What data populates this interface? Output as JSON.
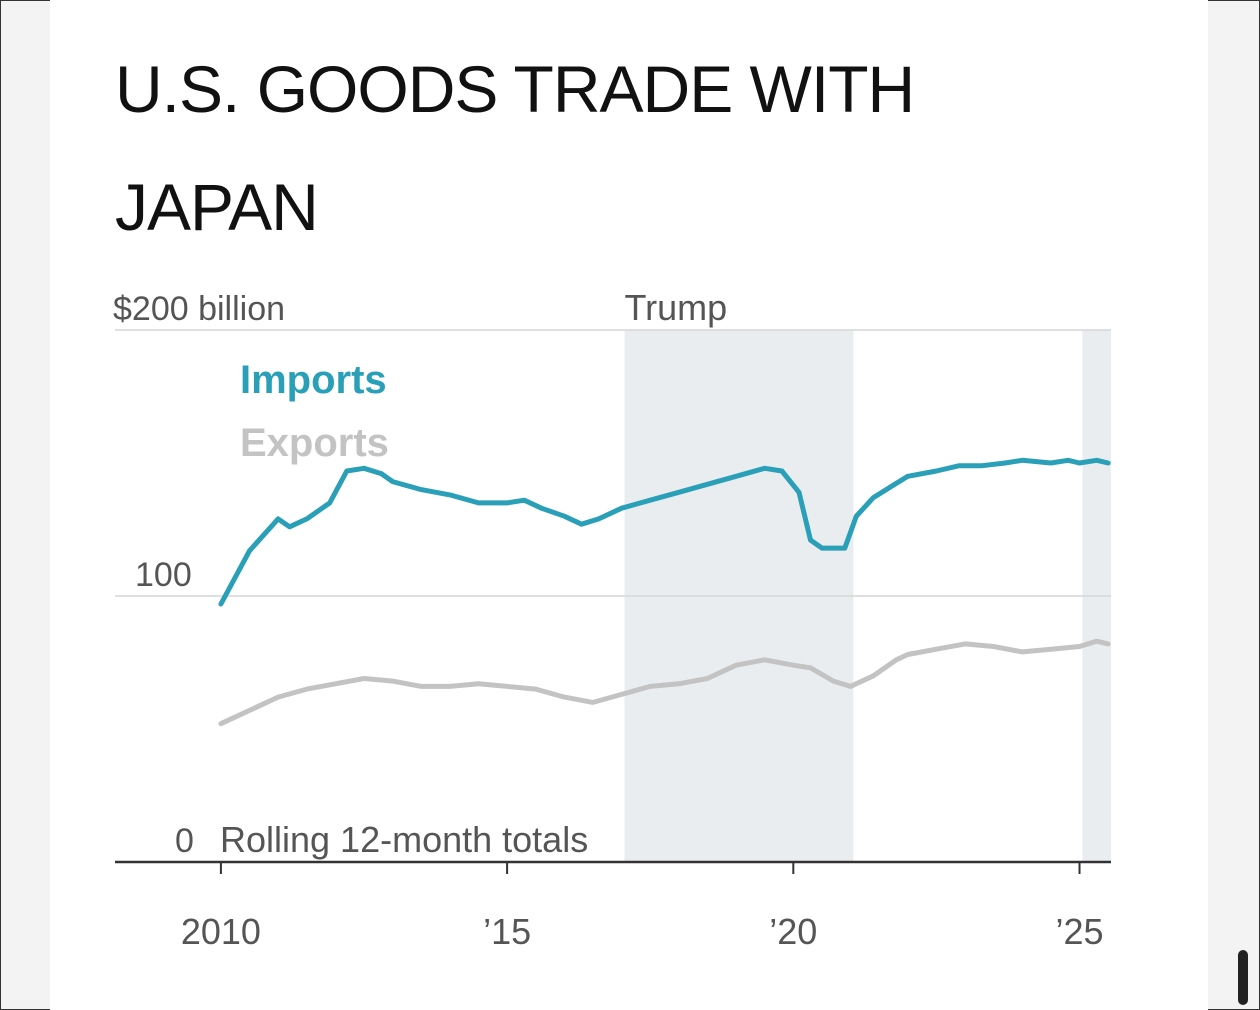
{
  "chart_data": {
    "type": "line",
    "title": "U.S. GOODS TRADE WITH JAPAN",
    "ylabel": "Rolling 12-month totals",
    "ylim": [
      0,
      200
    ],
    "yticks": [
      {
        "value": 200,
        "label": "$200 billion"
      },
      {
        "value": 100,
        "label": "100"
      },
      {
        "value": 0,
        "label": "0"
      }
    ],
    "xlim": [
      2008.15,
      2025.55
    ],
    "xticks": [
      {
        "value": 2010,
        "label": "2010"
      },
      {
        "value": 2015,
        "label": "’15"
      },
      {
        "value": 2020,
        "label": "’20"
      },
      {
        "value": 2025,
        "label": "’25"
      }
    ],
    "shaded_periods": [
      {
        "start": 2017.05,
        "end": 2021.05,
        "label": "Trump"
      },
      {
        "start": 2025.05,
        "end": 2025.55,
        "label": ""
      }
    ],
    "series": [
      {
        "name": "Imports",
        "color": "#2a9fb8",
        "x": [
          2010.0,
          2010.5,
          2011.0,
          2011.2,
          2011.5,
          2011.9,
          2012.2,
          2012.5,
          2012.8,
          2013.0,
          2013.5,
          2014.0,
          2014.5,
          2015.0,
          2015.3,
          2015.6,
          2016.0,
          2016.3,
          2016.6,
          2017.0,
          2017.5,
          2018.0,
          2018.5,
          2019.0,
          2019.5,
          2019.8,
          2020.1,
          2020.3,
          2020.5,
          2020.9,
          2021.1,
          2021.4,
          2021.7,
          2022.0,
          2022.5,
          2022.9,
          2023.3,
          2023.7,
          2024.0,
          2024.5,
          2024.8,
          2025.0,
          2025.3,
          2025.5
        ],
        "values": [
          97,
          117,
          129,
          126,
          129,
          135,
          147,
          148,
          146,
          143,
          140,
          138,
          135,
          135,
          136,
          133,
          130,
          127,
          129,
          133,
          136,
          139,
          142,
          145,
          148,
          147,
          139,
          121,
          118,
          118,
          130,
          137,
          141,
          145,
          147,
          149,
          149,
          150,
          151,
          150,
          151,
          150,
          151,
          150
        ]
      },
      {
        "name": "Exports",
        "color": "#c3c3c3",
        "x": [
          2010.0,
          2010.5,
          2011.0,
          2011.5,
          2012.0,
          2012.5,
          2013.0,
          2013.5,
          2014.0,
          2014.5,
          2015.0,
          2015.5,
          2016.0,
          2016.5,
          2017.0,
          2017.5,
          2018.0,
          2018.5,
          2019.0,
          2019.5,
          2020.0,
          2020.3,
          2020.7,
          2021.0,
          2021.4,
          2021.8,
          2022.0,
          2022.5,
          2023.0,
          2023.5,
          2024.0,
          2024.5,
          2025.0,
          2025.3,
          2025.5
        ],
        "values": [
          52,
          57,
          62,
          65,
          67,
          69,
          68,
          66,
          66,
          67,
          66,
          65,
          62,
          60,
          63,
          66,
          67,
          69,
          74,
          76,
          74,
          73,
          68,
          66,
          70,
          76,
          78,
          80,
          82,
          81,
          79,
          80,
          81,
          83,
          82
        ]
      }
    ]
  }
}
